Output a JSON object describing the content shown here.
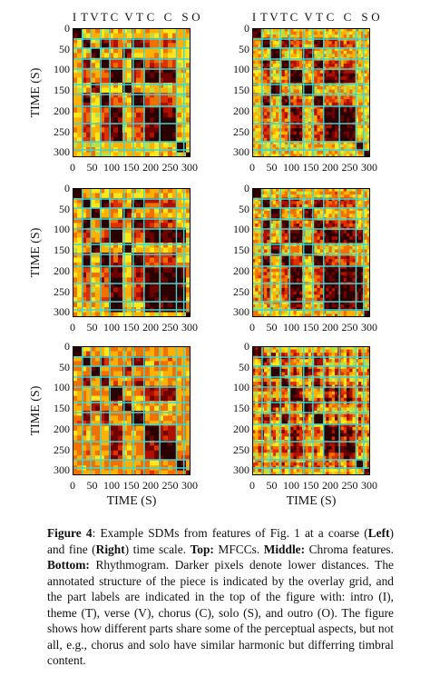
{
  "segment_labels": [
    "I",
    "T",
    "V",
    "T",
    "C",
    "V",
    "T",
    "C",
    "C",
    "S",
    "O"
  ],
  "y_label": "TIME (S)",
  "x_label": "TIME (S)",
  "y_ticks": [
    "0",
    "50",
    "100",
    "150",
    "200",
    "250",
    "300"
  ],
  "x_ticks": [
    "0",
    "50",
    "100",
    "150",
    "200",
    "250",
    "300"
  ],
  "panels": [
    {
      "id": "mfcc-coarse",
      "row": "Top",
      "side": "Left",
      "feature": "MFCCs",
      "scale": "coarse"
    },
    {
      "id": "mfcc-fine",
      "row": "Top",
      "side": "Right",
      "feature": "MFCCs",
      "scale": "fine"
    },
    {
      "id": "chroma-coarse",
      "row": "Middle",
      "side": "Left",
      "feature": "Chroma features",
      "scale": "coarse"
    },
    {
      "id": "chroma-fine",
      "row": "Middle",
      "side": "Right",
      "feature": "Chroma features",
      "scale": "fine"
    },
    {
      "id": "rhythm-coarse",
      "row": "Bottom",
      "side": "Left",
      "feature": "Rhythmogram",
      "scale": "coarse"
    },
    {
      "id": "rhythm-fine",
      "row": "Bottom",
      "side": "Right",
      "feature": "Rhythmogram",
      "scale": "fine"
    }
  ],
  "colors": {
    "grid": "#3fd6d2",
    "dark": "#2a0000",
    "red": "#b01000",
    "orange": "#f07000",
    "yellow": "#ffe81a",
    "green": "#9cd640"
  },
  "caption": {
    "label": "Figure 4",
    "lead": ": Example SDMs from features of Fig. 1 at a coarse (",
    "left": "Left",
    "mid1": ") and fine (",
    "right": "Right",
    "mid2": ") time scale. ",
    "top_label": "Top:",
    "top_text": " MFCCs. ",
    "middle_label": "Middle:",
    "middle_text": " Chroma features. ",
    "bottom_label": "Bottom:",
    "bottom_text": " Rhythmogram. Darker pixels denote lower distances. The annotated structure of the piece is indicated by the overlay grid, and the part labels are indicated in the top of the figure with: intro (I), theme (T), verse (V), chorus (C), solo (S), and outro (O). The figure shows how different parts share some of the perceptual aspects, but not all, e.g., chorus and solo have similar harmonic but differring timbral content."
  }
}
